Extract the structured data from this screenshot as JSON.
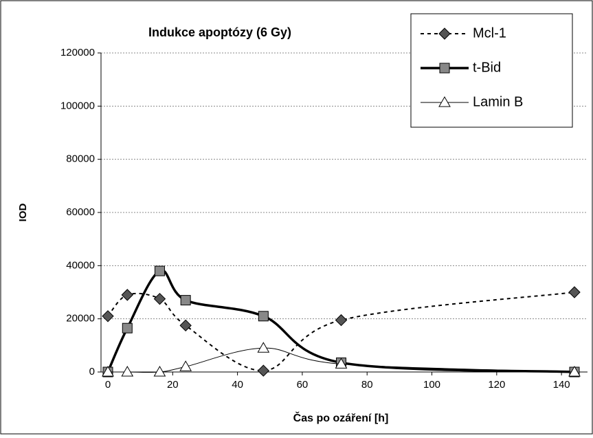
{
  "chart_data": {
    "type": "line",
    "title": "Indukce apoptózy (6 Gy)",
    "x_label": "Čas po ozáření [h]",
    "y_label": "IOD",
    "x": [
      0,
      6,
      16,
      24,
      48,
      72,
      144
    ],
    "series": [
      {
        "name": "Mcl-1",
        "color": "#000000",
        "style": "dashed",
        "marker": "diamond",
        "values": [
          21000,
          29000,
          27500,
          17500,
          500,
          19500,
          30000
        ]
      },
      {
        "name": "t-Bid",
        "color": "#000000",
        "style": "thick",
        "marker": "square",
        "values": [
          0,
          16500,
          38000,
          27000,
          21000,
          3500,
          0
        ]
      },
      {
        "name": "Lamin B",
        "color": "#000000",
        "style": "thin",
        "marker": "triangle",
        "values": [
          0,
          0,
          0,
          2000,
          9000,
          3000,
          0
        ]
      }
    ],
    "xlim": [
      0,
      144
    ],
    "xticks": [
      0,
      20,
      40,
      60,
      80,
      100,
      120,
      140
    ],
    "ylim": [
      0,
      120000
    ],
    "yticks": [
      0,
      20000,
      40000,
      60000,
      80000,
      100000,
      120000
    ],
    "grid": true,
    "legend": "top-right"
  }
}
